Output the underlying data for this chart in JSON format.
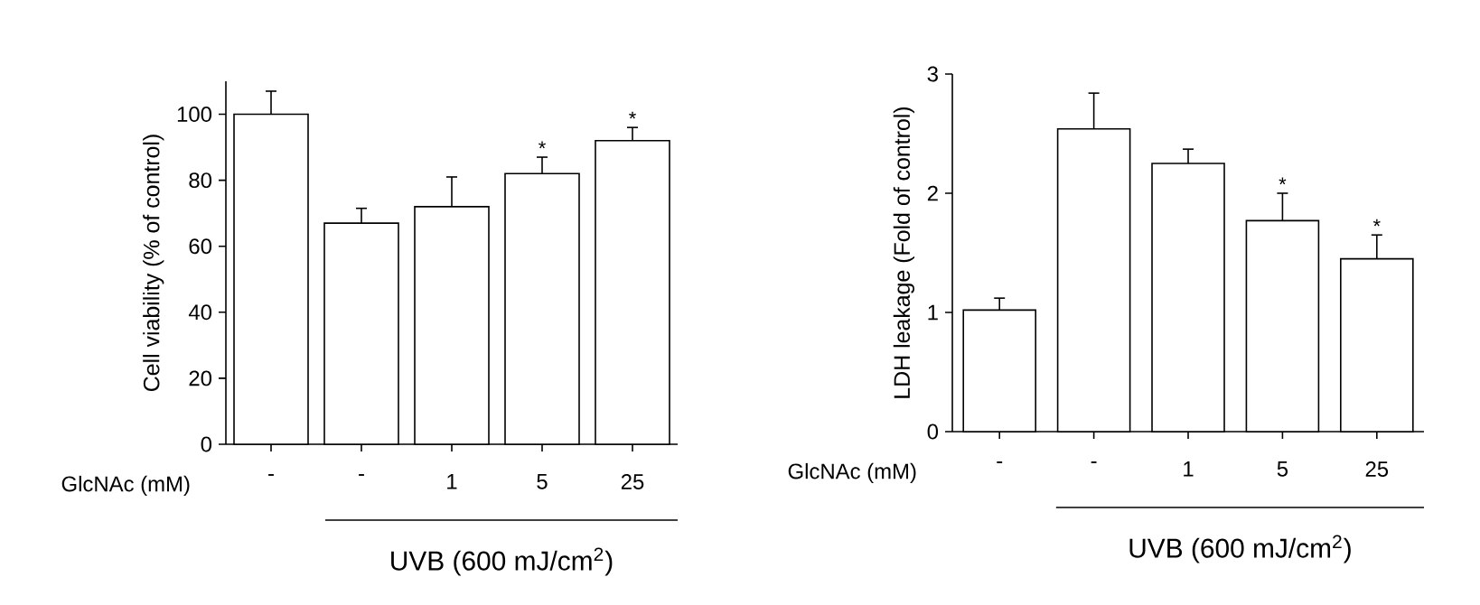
{
  "chart_data": [
    {
      "type": "bar",
      "ylabel": "Cell viability (% of control)",
      "categories": [
        "-",
        "-",
        "1",
        "5",
        "25"
      ],
      "values": [
        100,
        67,
        72,
        82,
        92
      ],
      "errors": [
        [
          100,
          107
        ],
        [
          67,
          71.5
        ],
        [
          72,
          81
        ],
        [
          82,
          87
        ],
        [
          92,
          96
        ]
      ],
      "color": "#ffffff",
      "ylim": [
        0,
        110
      ],
      "yticks": [
        0,
        20,
        40,
        60,
        80,
        100
      ],
      "annotations": [
        "GlcNAc (mM)",
        "UVB (600 mJ/cm$^{2}$)",
        {
          "text": "*",
          "x": "5",
          "y": 87
        },
        {
          "text": "*",
          "x": "25",
          "y": 96
        }
      ]
    },
    {
      "type": "bar",
      "ylabel": "LDH leakage (Fold of control)",
      "categories": [
        "-",
        "-",
        "1",
        "5",
        "25"
      ],
      "values": [
        1.02,
        2.54,
        2.25,
        1.77,
        1.45
      ],
      "errors": [
        [
          1.02,
          1.12
        ],
        [
          2.54,
          2.84
        ],
        [
          2.25,
          2.37
        ],
        [
          1.77,
          2.0
        ],
        [
          1.45,
          1.65
        ]
      ],
      "color": "#ffffff",
      "ylim": [
        0,
        3
      ],
      "yticks": [
        0,
        1,
        2,
        3
      ],
      "annotations": [
        "GlcNAc (mM)",
        "UVB (600 mJ/cm$^{2}$)",
        {
          "text": "*",
          "x": "5",
          "y": 2.0
        },
        {
          "text": "*",
          "x": "25",
          "y": 1.65
        }
      ]
    }
  ]
}
